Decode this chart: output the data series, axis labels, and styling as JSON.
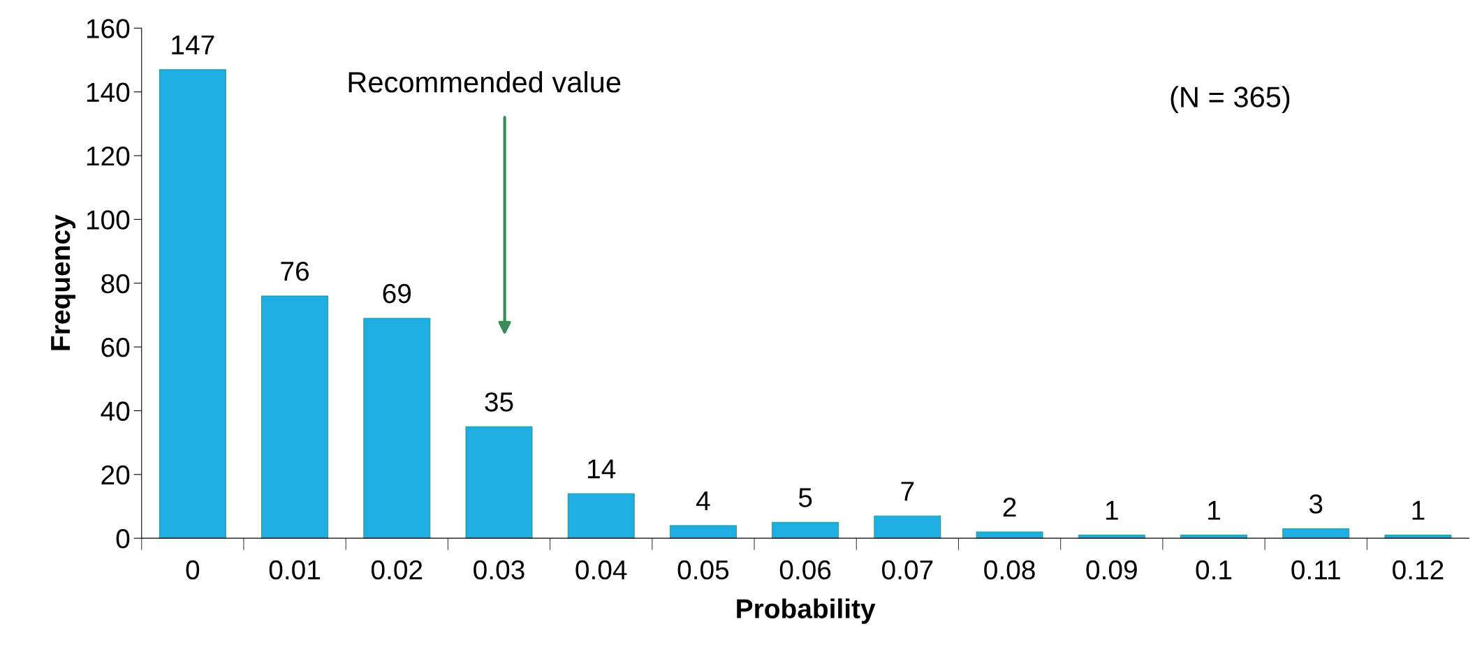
{
  "chart_data": {
    "type": "bar",
    "xlabel": "Probability",
    "ylabel": "Frequency",
    "categories": [
      "0",
      "0.01",
      "0.02",
      "0.03",
      "0.04",
      "0.05",
      "0.06",
      "0.07",
      "0.08",
      "0.09",
      "0.1",
      "0.11",
      "0.12"
    ],
    "values": [
      147,
      76,
      69,
      35,
      14,
      4,
      5,
      7,
      2,
      1,
      1,
      3,
      1
    ],
    "color": "#1eaee4",
    "ylim": [
      0,
      160
    ],
    "yticks": [
      0,
      20,
      40,
      60,
      80,
      100,
      120,
      140,
      160
    ],
    "data_labels": true,
    "grid": false,
    "legend": false,
    "annotations": [
      "Recommended value",
      "(N = 365)"
    ]
  }
}
